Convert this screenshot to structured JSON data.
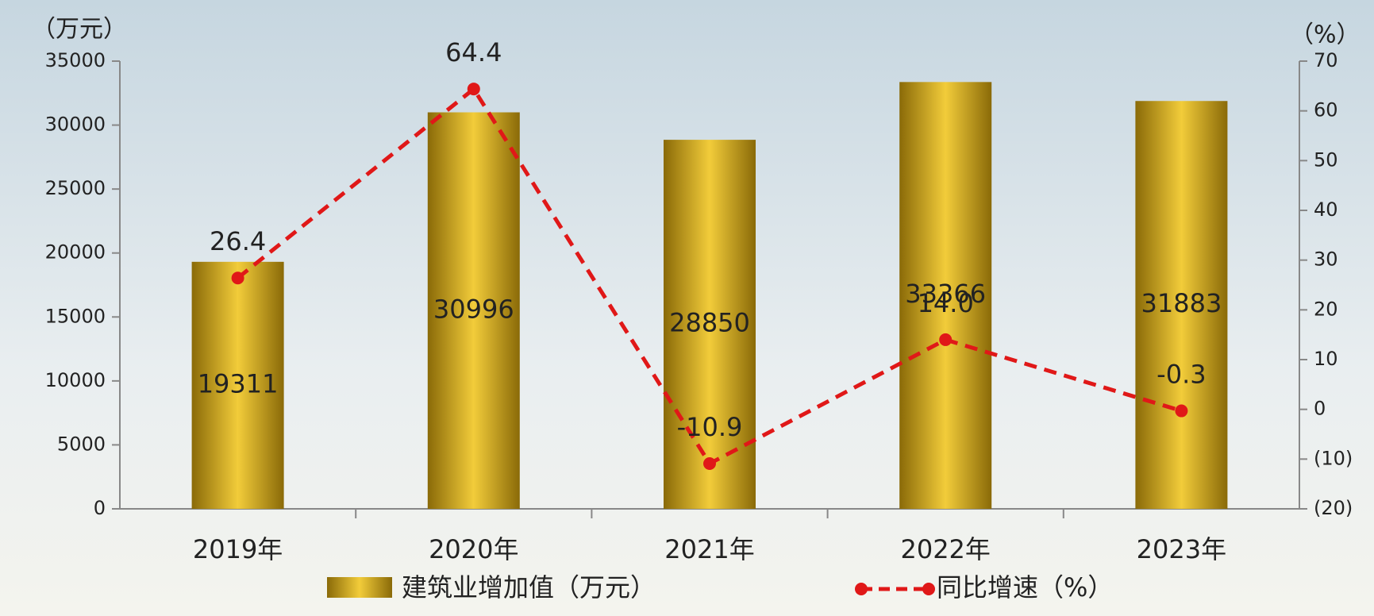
{
  "chart_data": {
    "type": "bar_line",
    "y_axis_label": "（万元）",
    "y2_axis_label": "（%）",
    "categories": [
      "2019年",
      "2020年",
      "2021年",
      "2022年",
      "2023年"
    ],
    "series": [
      {
        "name": "建筑业增加值（万元）",
        "type": "bar",
        "color": "#c9a21c",
        "values": [
          19311,
          30996,
          28850,
          33366,
          31883
        ]
      },
      {
        "name": "同比增速（%）",
        "type": "line",
        "axis": "y2",
        "color": "#e01818",
        "values": [
          26.4,
          64.4,
          -10.9,
          14.0,
          -0.3
        ],
        "value_labels": [
          "26.4",
          "64.4",
          "-10.9",
          "14.0",
          "-0.3"
        ]
      }
    ],
    "ylim": [
      0,
      35000
    ],
    "yticks": [
      0,
      5000,
      10000,
      15000,
      20000,
      25000,
      30000,
      35000
    ],
    "y2lim": [
      -20,
      70
    ],
    "y2ticks": [
      {
        "value": -20,
        "label": "(20)"
      },
      {
        "value": -10,
        "label": "(10)"
      },
      0,
      10,
      20,
      30,
      40,
      50,
      60,
      70
    ],
    "negative_tick_color": "#e01818"
  }
}
